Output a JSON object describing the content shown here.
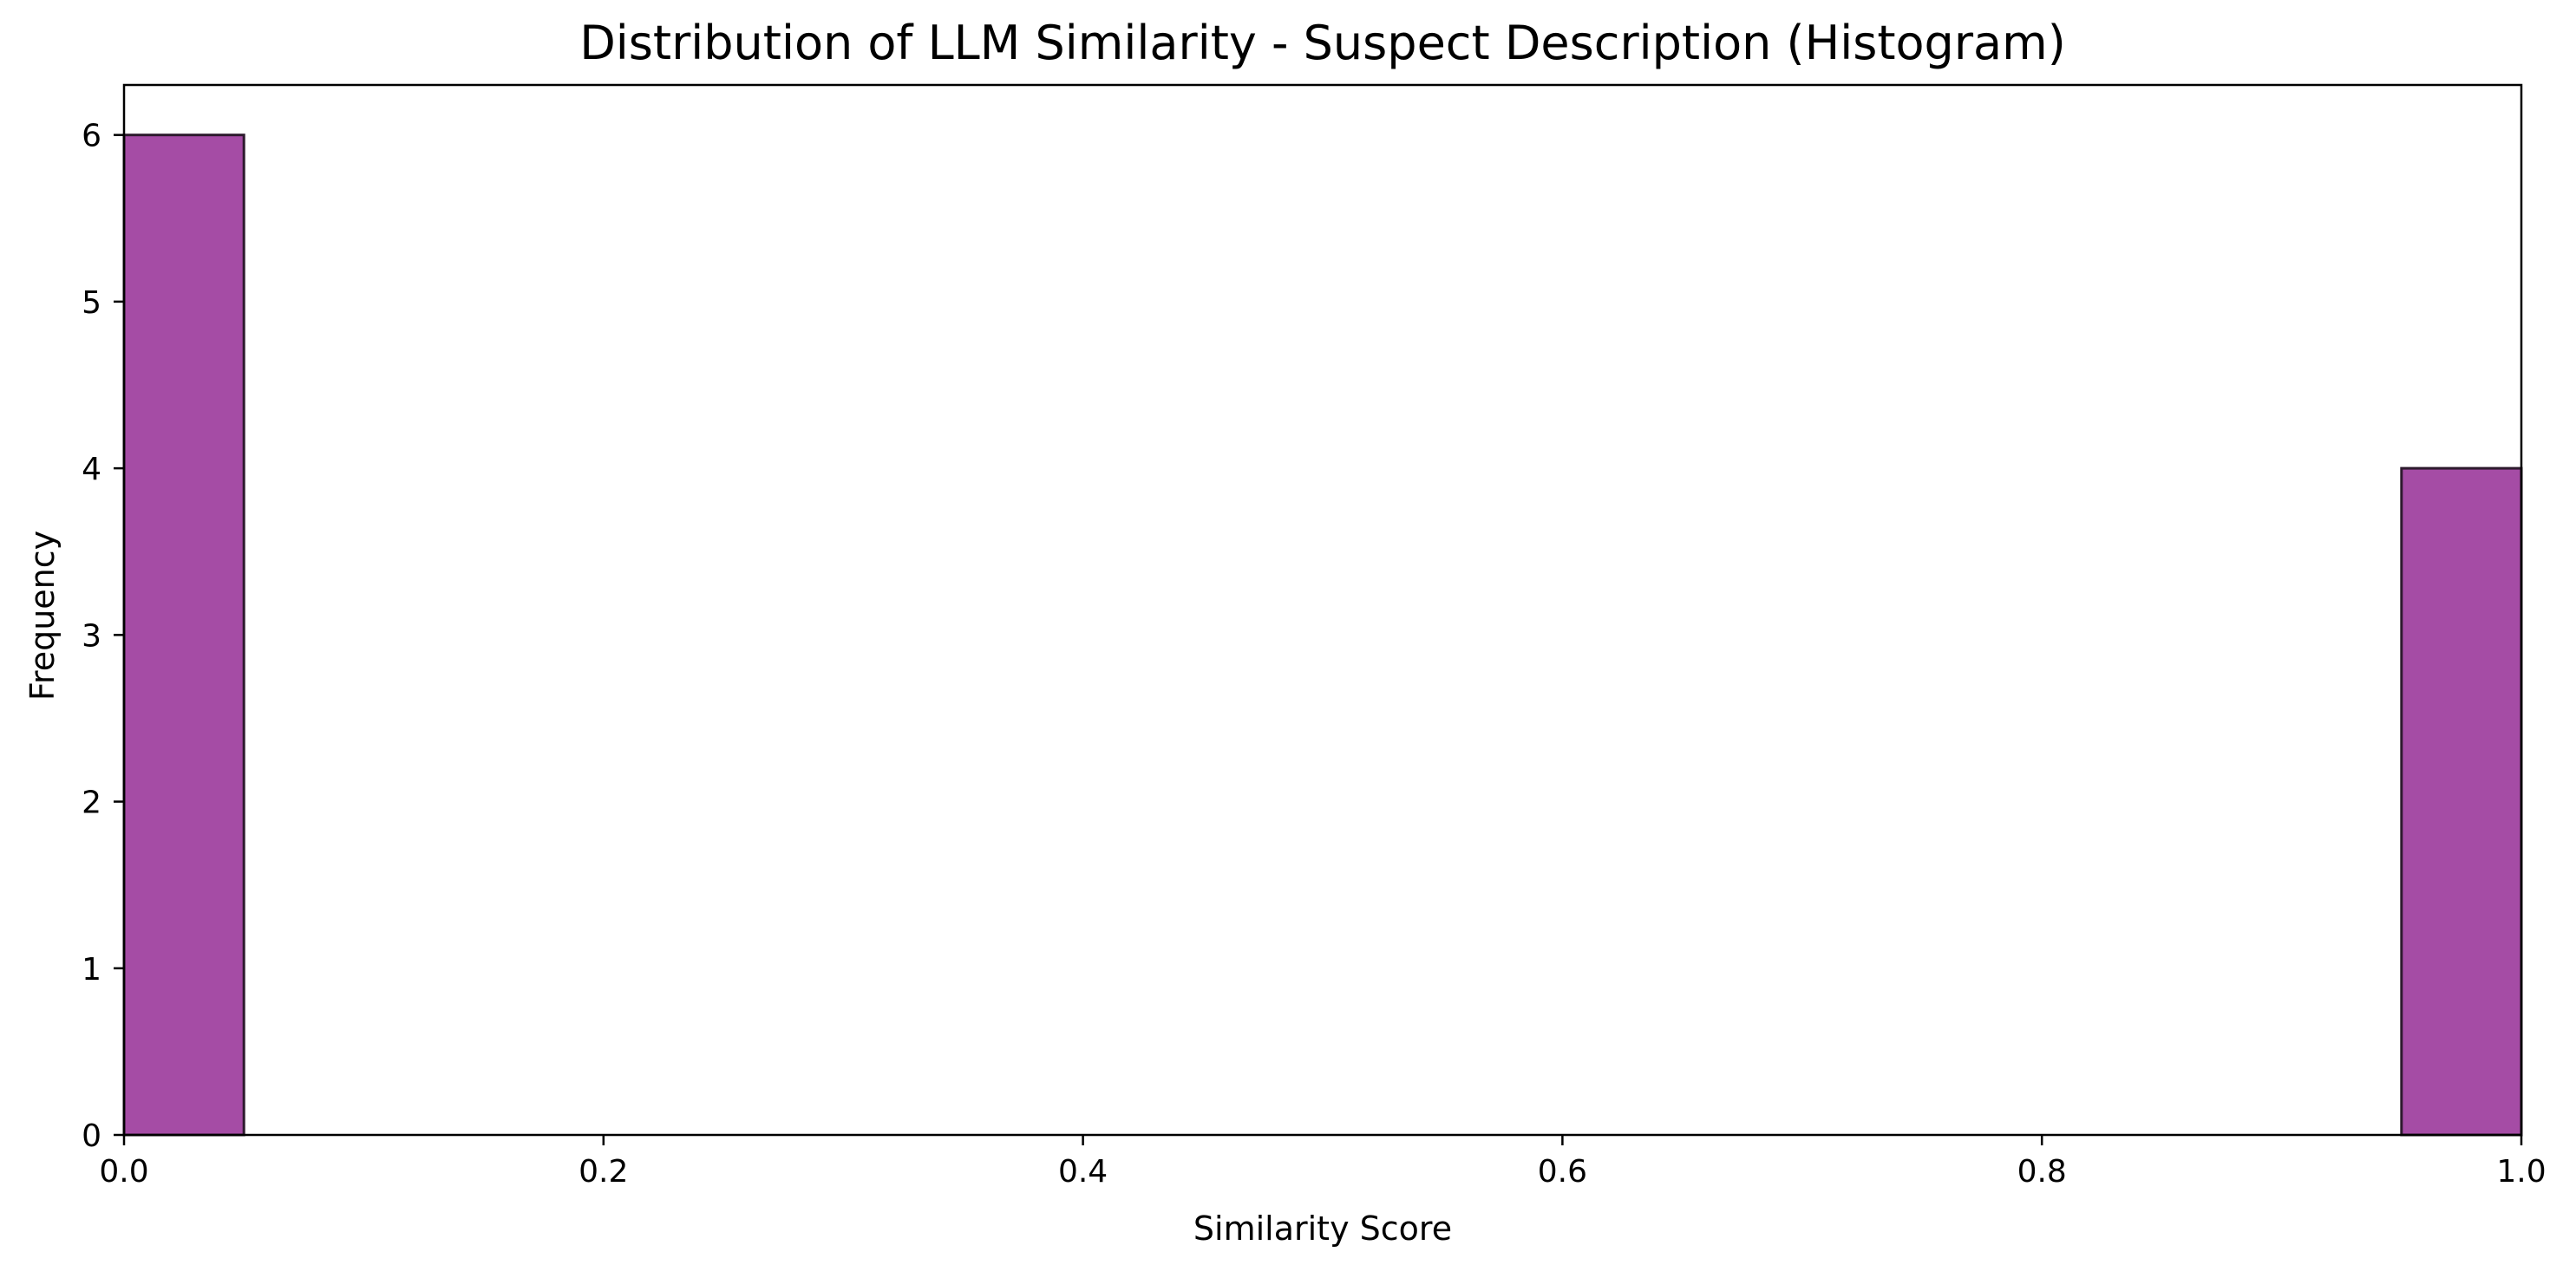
{
  "chart_data": {
    "type": "bar",
    "title": "Distribution of LLM Similarity - Suspect Description (Histogram)",
    "xlabel": "Similarity Score",
    "ylabel": "Frequency",
    "xlim": [
      0.0,
      1.0
    ],
    "ylim": [
      0,
      6.3
    ],
    "xticks": [
      0.0,
      0.2,
      0.4,
      0.6,
      0.8,
      1.0
    ],
    "xtick_labels": [
      "0.0",
      "0.2",
      "0.4",
      "0.6",
      "0.8",
      "1.0"
    ],
    "yticks": [
      0,
      1,
      2,
      3,
      4,
      5,
      6
    ],
    "ytick_labels": [
      "0",
      "1",
      "2",
      "3",
      "4",
      "5",
      "6"
    ],
    "grid": false,
    "bins": [
      {
        "start": 0.0,
        "end": 0.05,
        "count": 6
      },
      {
        "start": 0.95,
        "end": 1.0,
        "count": 4
      }
    ],
    "colors": {
      "bar_fill": "#a54ca5",
      "bar_edge": "#2e1a2e"
    }
  }
}
